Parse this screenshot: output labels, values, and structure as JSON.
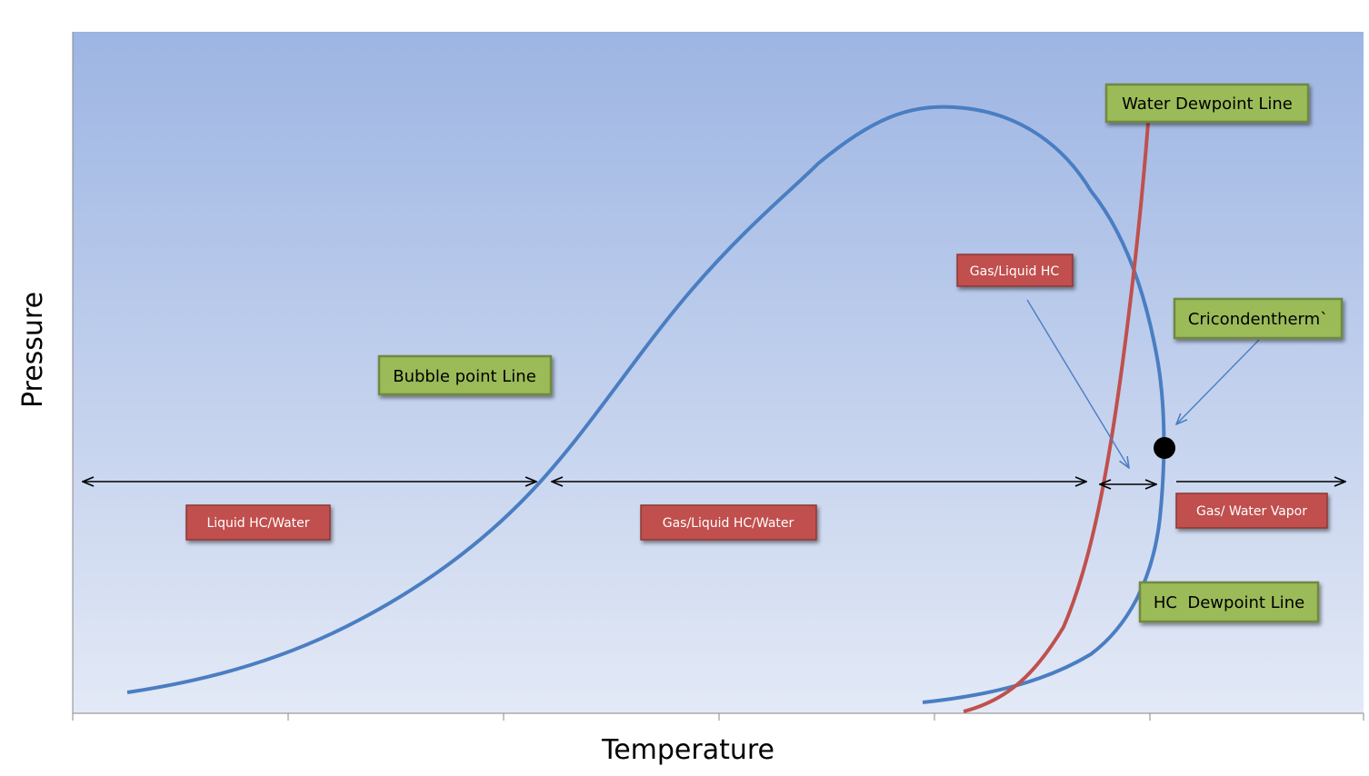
{
  "axes": {
    "x_title": "Temperature",
    "y_title": "Pressure"
  },
  "labels": {
    "water_dewpoint_line": "Water Dewpoint Line",
    "bubble_point_line": "Bubble point Line",
    "cricondentherm": "Cricondentherm`",
    "hc_dewpoint_line": "HC  Dewpoint Line",
    "gas_liquid_hc": "Gas/Liquid HC",
    "liquid_hc_water": "Liquid HC/Water",
    "gas_liquid_hc_water": "Gas/Liquid HC/Water",
    "gas_water_vapor": "Gas/ Water Vapor"
  },
  "colors": {
    "plot_bg_top": "#9DB5E3",
    "plot_bg_bottom": "#E3E9F6",
    "phase_envelope": "#4A7EC2",
    "water_dewpoint": "#C0504D",
    "green_box_fill": "#9BBB59",
    "green_box_stroke": "#71893F",
    "red_box_fill": "#C0504D",
    "red_box_stroke": "#8C3836"
  }
}
